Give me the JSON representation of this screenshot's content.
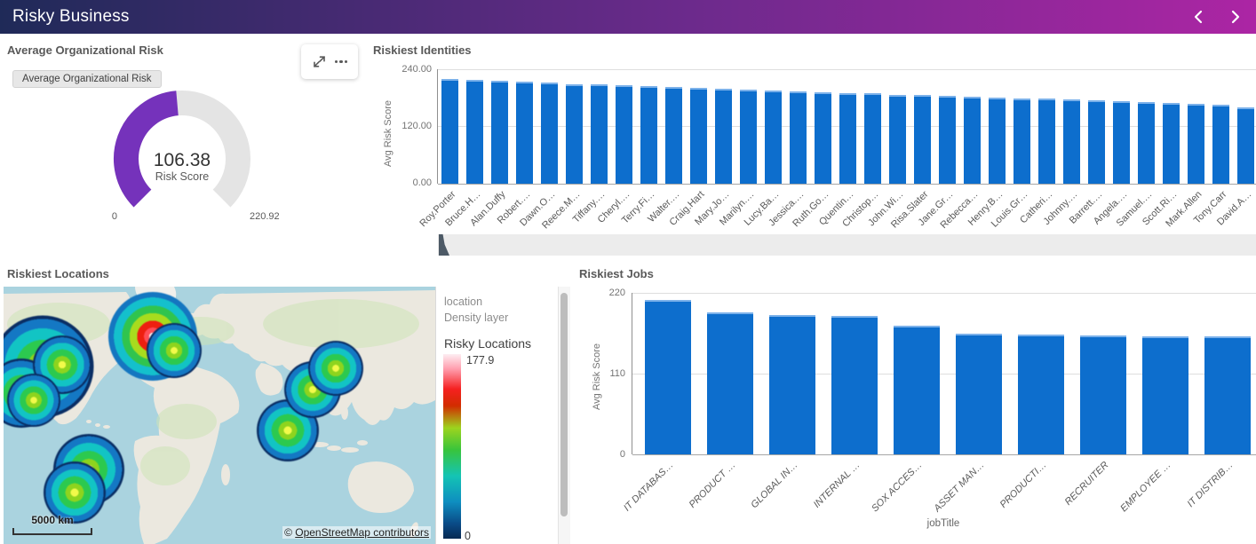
{
  "header": {
    "title": "Risky Business"
  },
  "panels": {
    "gauge": {
      "title": "Average Organizational Risk",
      "chip": "Average Organizational Risk",
      "value": "106.38",
      "unit": "Risk Score",
      "min": "0",
      "max": "220.92"
    },
    "identities": {
      "title": "Riskiest Identities",
      "y_label": "Avg Risk Score",
      "y_ticks": [
        "240.00",
        "120.00",
        "0.00"
      ]
    },
    "locations": {
      "title": "Riskiest Locations",
      "layer_dim": "location",
      "layer_type": "Density layer",
      "legend_title": "Risky Locations",
      "legend_max": "177.9",
      "legend_min": "0",
      "scale_label": "5000 km",
      "attribution_prefix": "© ",
      "attribution_link": "OpenStreetMap contributors"
    },
    "jobs": {
      "title": "Riskiest Jobs",
      "y_label": "Avg Risk Score",
      "x_label": "jobTitle",
      "y_ticks": [
        "220",
        "110",
        "0"
      ]
    }
  },
  "colors": {
    "bar_blue": "#0d6ecd",
    "gauge_purple": "#7532bb",
    "gauge_track": "#e4e4e4",
    "header_gradient_left": "#1f2a58",
    "header_gradient_mid": "#6c2a8c",
    "header_gradient_right": "#ac25a4"
  },
  "chart_data": [
    {
      "id": "avg-org-risk",
      "type": "gauge",
      "title": "Average Organizational Risk",
      "value": 106.38,
      "min": 0,
      "max": 220.92,
      "unit": "Risk Score"
    },
    {
      "id": "riskiest-identities",
      "type": "bar",
      "title": "Riskiest Identities",
      "xlabel": "",
      "ylabel": "Avg Risk Score",
      "ylim": [
        0,
        240
      ],
      "categories": [
        "Roy.Porter",
        "Bruce.H…",
        "Alan.Duffy",
        "Robert.…",
        "Dawn.O…",
        "Reece.M…",
        "Tiffany.…",
        "Cheryl.…",
        "Terry.Fi…",
        "Walter.…",
        "Craig.Hart",
        "Mary.Jo…",
        "Marilyn.…",
        "Lucy.Ba…",
        "Jessica.…",
        "Ruth.Go…",
        "Quentin…",
        "Christop…",
        "John.Wi…",
        "Risa.Slater",
        "Jane.Gr…",
        "Rebecca…",
        "Henry.B…",
        "Louis.Gr…",
        "Catheri…",
        "Johnny.…",
        "Barrett.…",
        "Angela.…",
        "Samuel.…",
        "Scott.Ri…",
        "Mark.Allen",
        "Tony.Carr",
        "David.A…"
      ],
      "values": [
        220,
        218,
        215,
        214,
        213,
        209,
        208,
        207,
        204,
        202,
        201,
        199,
        198,
        196,
        194,
        192,
        190,
        189,
        187,
        186,
        184,
        182,
        181,
        179,
        178,
        176,
        175,
        174,
        172,
        170,
        168,
        165,
        160
      ]
    },
    {
      "id": "riskiest-jobs",
      "type": "bar",
      "title": "Riskiest Jobs",
      "xlabel": "jobTitle",
      "ylabel": "Avg Risk Score",
      "ylim": [
        0,
        220
      ],
      "categories": [
        "IT DATABAS…",
        "PRODUCT …",
        "GLOBAL IN…",
        "INTERNAL …",
        "SOX ACCES…",
        "ASSET MAN…",
        "PRODUCTI…",
        "RECRUITER",
        "EMPLOYEE …",
        "IT DISTRIB…"
      ],
      "values": [
        210,
        193,
        190,
        189,
        175,
        164,
        163,
        162,
        161,
        161
      ]
    },
    {
      "id": "riskiest-locations",
      "type": "heatmap",
      "title": "Riskiest Locations",
      "legend": {
        "title": "Risky Locations",
        "max": 177.9,
        "min": 0
      },
      "hotspots": [
        {
          "name": "north-america-main",
          "x": 44,
          "y": 90,
          "size": 115,
          "heat": "warm"
        },
        {
          "name": "north-america-sw",
          "x": 20,
          "y": 120,
          "size": 78,
          "heat": "warm"
        },
        {
          "name": "north-america-ne",
          "x": 66,
          "y": 88,
          "size": 66,
          "heat": "warm"
        },
        {
          "name": "north-america-s",
          "x": 34,
          "y": 128,
          "size": 60,
          "heat": "warm"
        },
        {
          "name": "europe",
          "x": 168,
          "y": 56,
          "size": 100,
          "heat": "hot"
        },
        {
          "name": "europe-se",
          "x": 192,
          "y": 72,
          "size": 62,
          "heat": "warm"
        },
        {
          "name": "south-america-n",
          "x": 96,
          "y": 206,
          "size": 80,
          "heat": "warm"
        },
        {
          "name": "south-america-s",
          "x": 80,
          "y": 232,
          "size": 70,
          "heat": "warm"
        },
        {
          "name": "southeast-asia",
          "x": 320,
          "y": 162,
          "size": 70,
          "heat": "warm"
        },
        {
          "name": "east-asia",
          "x": 348,
          "y": 116,
          "size": 64,
          "heat": "warm"
        },
        {
          "name": "japan",
          "x": 374,
          "y": 92,
          "size": 62,
          "heat": "warm"
        }
      ]
    }
  ]
}
